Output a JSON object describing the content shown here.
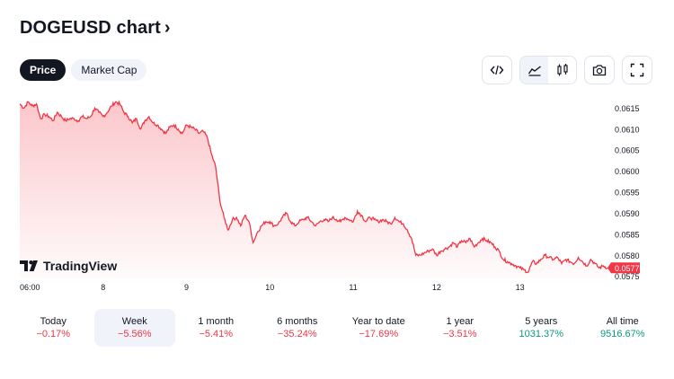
{
  "header": {
    "title": "DOGEUSD chart",
    "title_chevron": "›"
  },
  "segments": [
    {
      "label": "Price",
      "active": true
    },
    {
      "label": "Market Cap",
      "active": false
    }
  ],
  "toolbar": {
    "embed_icon": "code-icon",
    "area_icon": "area-chart-icon",
    "candles_icon": "candles-icon",
    "camera_icon": "camera-icon",
    "fullscreen_icon": "fullscreen-icon"
  },
  "branding": {
    "logo_text": "TradingView"
  },
  "periods": [
    {
      "label": "Today",
      "change": "−0.17%",
      "trend": "neg",
      "active": false
    },
    {
      "label": "Week",
      "change": "−5.56%",
      "trend": "neg",
      "active": true
    },
    {
      "label": "1 month",
      "change": "−5.41%",
      "trend": "neg",
      "active": false
    },
    {
      "label": "6 months",
      "change": "−35.24%",
      "trend": "neg",
      "active": false
    },
    {
      "label": "Year to date",
      "change": "−17.69%",
      "trend": "neg",
      "active": false
    },
    {
      "label": "1 year",
      "change": "−3.51%",
      "trend": "neg",
      "active": false
    },
    {
      "label": "5 years",
      "change": "1031.37%",
      "trend": "pos",
      "active": false
    },
    {
      "label": "All time",
      "change": "9516.67%",
      "trend": "pos",
      "active": false
    }
  ],
  "chart_data": {
    "type": "area",
    "x_ticks": [
      "06:00",
      "8",
      "9",
      "10",
      "11",
      "12",
      "13"
    ],
    "y_ticks": [
      "0.0615",
      "0.0610",
      "0.0605",
      "0.0600",
      "0.0595",
      "0.0590",
      "0.0585",
      "0.0580",
      "0.0575"
    ],
    "ylim": [
      0.05745,
      0.06185
    ],
    "last_price": "0.0577",
    "line_color": "#f23645",
    "grid": false,
    "x": [
      0,
      0.05,
      0.1,
      0.15,
      0.2,
      0.25,
      0.3,
      0.35,
      0.4,
      0.45,
      0.5,
      0.55,
      0.6,
      0.65,
      0.7,
      0.75,
      0.8,
      0.85,
      0.9,
      0.95,
      1.0,
      1.05,
      1.1,
      1.15,
      1.2,
      1.25,
      1.3,
      1.35,
      1.4,
      1.45,
      1.5,
      1.55,
      1.6,
      1.65,
      1.7,
      1.75,
      1.8,
      1.85,
      1.9,
      1.95,
      2.0,
      2.05,
      2.1,
      2.15,
      2.2,
      2.25,
      2.3,
      2.35,
      2.4,
      2.45,
      2.5,
      2.55,
      2.6,
      2.65,
      2.7,
      2.75,
      2.8,
      2.85,
      2.9,
      2.95,
      3.0,
      3.05,
      3.1,
      3.15,
      3.2,
      3.25,
      3.3,
      3.35,
      3.4,
      3.45,
      3.5,
      3.55,
      3.6,
      3.65,
      3.7,
      3.75,
      3.8,
      3.85,
      3.9,
      3.95,
      4.0,
      4.05,
      4.1,
      4.15,
      4.2,
      4.25,
      4.3,
      4.35,
      4.4,
      4.45,
      4.5,
      4.55,
      4.6,
      4.65,
      4.7,
      4.75,
      4.8,
      4.85,
      4.9,
      4.95,
      5.0,
      5.05,
      5.1,
      5.15,
      5.2,
      5.25,
      5.3,
      5.35,
      5.4,
      5.45,
      5.5,
      5.55,
      5.6,
      5.65,
      5.7,
      5.75,
      5.8,
      5.85,
      5.9,
      5.95,
      6.0,
      6.05,
      6.1,
      6.15,
      6.2,
      6.25,
      6.3,
      6.35,
      6.4,
      6.45,
      6.5,
      6.55,
      6.6,
      6.65,
      6.7,
      6.75,
      6.8,
      6.85,
      6.9,
      6.95,
      7.0,
      7.05
    ],
    "values": [
      0.0616,
      0.0615,
      0.06165,
      0.06155,
      0.0616,
      0.06125,
      0.06135,
      0.0613,
      0.0612,
      0.0614,
      0.0613,
      0.0612,
      0.06125,
      0.06125,
      0.0612,
      0.0613,
      0.06125,
      0.0613,
      0.0615,
      0.0614,
      0.0613,
      0.0614,
      0.06155,
      0.06165,
      0.0616,
      0.0614,
      0.0613,
      0.06115,
      0.06125,
      0.061,
      0.0612,
      0.0613,
      0.06115,
      0.0611,
      0.061,
      0.0609,
      0.06105,
      0.0611,
      0.061,
      0.0609,
      0.0611,
      0.06105,
      0.061,
      0.0609,
      0.06095,
      0.0608,
      0.0604,
      0.0601,
      0.0593,
      0.0589,
      0.0586,
      0.05885,
      0.0589,
      0.0587,
      0.05895,
      0.0588,
      0.0583,
      0.05855,
      0.0587,
      0.0588,
      0.0588,
      0.0587,
      0.05875,
      0.0589,
      0.059,
      0.0588,
      0.0587,
      0.0588,
      0.05885,
      0.0589,
      0.0588,
      0.0587,
      0.0588,
      0.05885,
      0.0588,
      0.0589,
      0.05885,
      0.0588,
      0.0589,
      0.05885,
      0.0588,
      0.05905,
      0.05895,
      0.0588,
      0.0589,
      0.05885,
      0.0588,
      0.05885,
      0.0588,
      0.05875,
      0.0589,
      0.0588,
      0.05875,
      0.0586,
      0.0584,
      0.058,
      0.058,
      0.05805,
      0.0581,
      0.05815,
      0.058,
      0.0581,
      0.05815,
      0.0582,
      0.0583,
      0.0582,
      0.05835,
      0.0583,
      0.0584,
      0.0582,
      0.0583,
      0.0584,
      0.05835,
      0.0583,
      0.0582,
      0.0581,
      0.0579,
      0.05785,
      0.0578,
      0.05775,
      0.0577,
      0.05765,
      0.0576,
      0.05785,
      0.0578,
      0.0579,
      0.058,
      0.05795,
      0.0579,
      0.05795,
      0.0578,
      0.0579,
      0.05785,
      0.0578,
      0.05795,
      0.05785,
      0.05775,
      0.0579,
      0.0578,
      0.0577,
      0.05775,
      0.0577
    ]
  }
}
